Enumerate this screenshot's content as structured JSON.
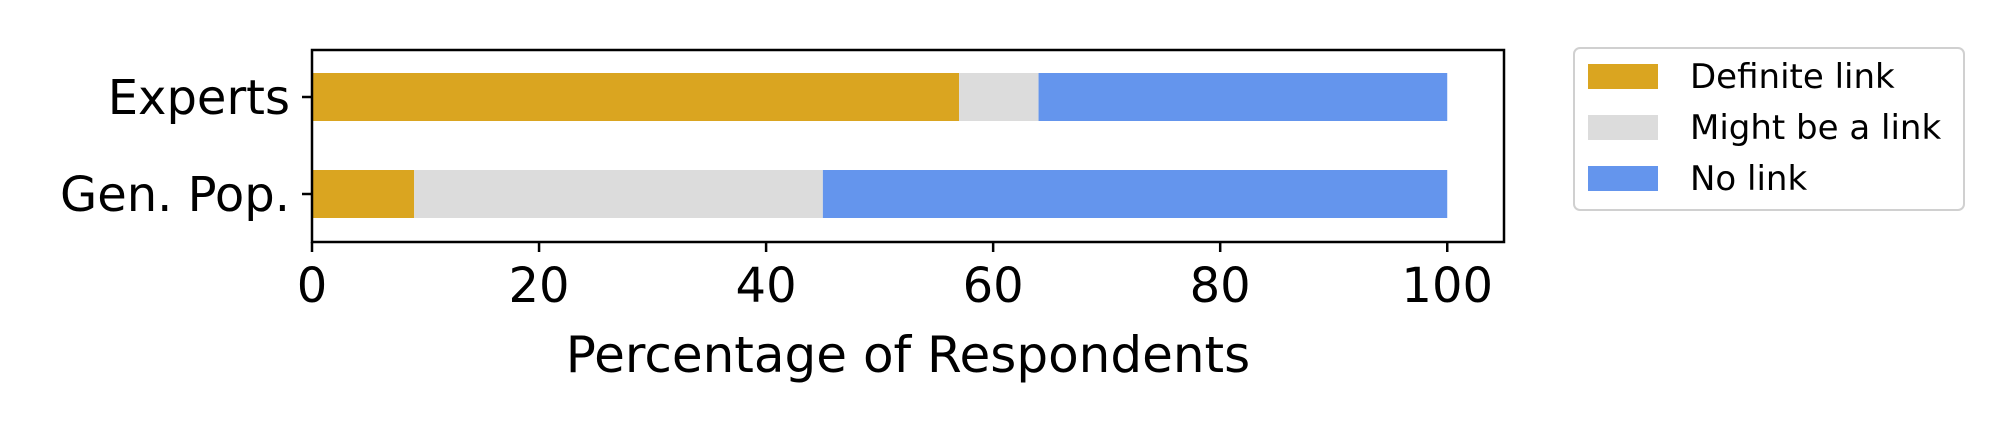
{
  "chart_data": {
    "type": "bar",
    "orientation": "horizontal",
    "stacked": true,
    "categories": [
      "Experts",
      "Gen. Pop."
    ],
    "series": [
      {
        "name": "Definite link",
        "values": [
          57,
          9
        ],
        "color": "#DAA520"
      },
      {
        "name": "Might be a link",
        "values": [
          7,
          36
        ],
        "color": "#DCDCDC"
      },
      {
        "name": "No link",
        "values": [
          36,
          55
        ],
        "color": "#6495ED"
      }
    ],
    "title": "",
    "xlabel": "Percentage of Respondents",
    "ylabel": "",
    "xlim": [
      0,
      105
    ],
    "xticks": [
      "0",
      "20",
      "40",
      "60",
      "80",
      "100"
    ],
    "grid": false,
    "legend_position": "outside-right"
  }
}
